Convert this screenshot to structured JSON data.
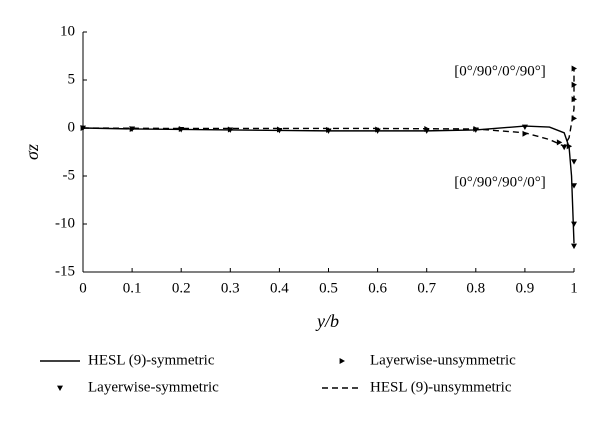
{
  "chart_data": {
    "type": "line",
    "xlabel": "y/b",
    "ylabel": "σz",
    "xlim": [
      0,
      1
    ],
    "xticks": [
      0,
      0.1,
      0.2,
      0.3,
      0.4,
      0.5,
      0.6,
      0.7,
      0.8,
      0.9,
      1
    ],
    "ylim": [
      -15,
      10
    ],
    "yticks": [
      -15,
      -10,
      -5,
      0,
      5,
      10
    ],
    "annotations": [
      "[0°/90°/0°/90°]",
      "[0°/90°/90°/0°]"
    ],
    "series": [
      {
        "name": "HESL (9)-symmetric",
        "color": "#000000",
        "line": "solid",
        "marker": "none",
        "x": [
          0,
          0.1,
          0.2,
          0.3,
          0.4,
          0.5,
          0.6,
          0.7,
          0.8,
          0.9,
          0.95,
          0.98,
          0.99,
          0.995,
          1
        ],
        "values": [
          0,
          -0.1,
          -0.15,
          -0.2,
          -0.25,
          -0.3,
          -0.3,
          -0.3,
          -0.2,
          0.2,
          0.1,
          -0.5,
          -2,
          -5,
          -12
        ]
      },
      {
        "name": "Layerwise-unsymmetric",
        "color": "#000000",
        "line": "none",
        "marker": "triangle-right",
        "x": [
          0,
          0.1,
          0.2,
          0.3,
          0.4,
          0.5,
          0.6,
          0.7,
          0.8,
          0.9,
          0.97,
          0.99,
          1,
          1,
          1,
          1
        ],
        "values": [
          0,
          -0.1,
          -0.1,
          -0.15,
          -0.15,
          -0.2,
          -0.15,
          -0.1,
          -0.1,
          -0.6,
          -1.5,
          -1.9,
          1,
          3,
          4.5,
          6.2
        ]
      },
      {
        "name": "Layerwise-symmetric",
        "color": "#000000",
        "line": "none",
        "marker": "triangle-down",
        "x": [
          0,
          0.1,
          0.2,
          0.3,
          0.4,
          0.5,
          0.6,
          0.7,
          0.8,
          0.9,
          0.98,
          1,
          1,
          1,
          1
        ],
        "values": [
          0,
          -0.1,
          -0.15,
          -0.2,
          -0.25,
          -0.3,
          -0.3,
          -0.3,
          -0.2,
          0.1,
          -2,
          -3.5,
          -6,
          -10,
          -12.3
        ]
      },
      {
        "name": "HESL (9)-unsymmetric",
        "color": "#000000",
        "line": "dashed",
        "marker": "none",
        "x": [
          0,
          0.2,
          0.4,
          0.6,
          0.8,
          0.9,
          0.95,
          0.98,
          0.99,
          1,
          1
        ],
        "values": [
          0,
          -0.05,
          -0.05,
          -0.05,
          -0.1,
          -0.5,
          -1.2,
          -1.9,
          -1,
          2,
          6.2
        ]
      }
    ]
  }
}
